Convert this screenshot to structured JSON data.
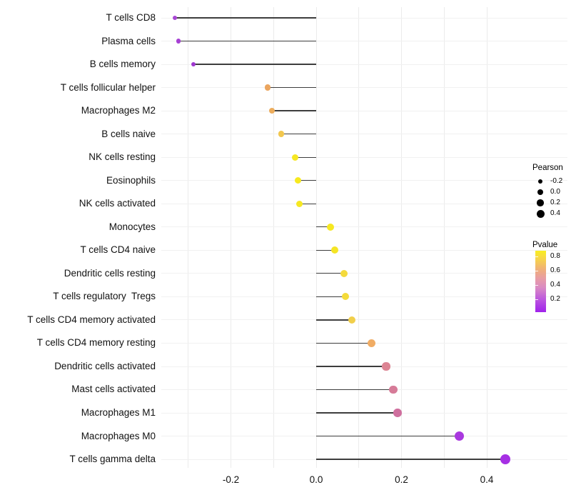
{
  "chart_data": {
    "type": "lollipop",
    "title": "",
    "xlabel": "",
    "ylabel": "",
    "xlim": [
      -0.365,
      0.475
    ],
    "x_ticks": [
      -0.2,
      0.0,
      0.2,
      0.4
    ],
    "x_tick_labels": [
      "-0.2",
      "0.0",
      "0.2",
      "0.4"
    ],
    "grid_minor_ticks": [
      -0.3,
      -0.1,
      0.1,
      0.3
    ],
    "grid": "vertical lines every 0.1, faint horizontal line per category",
    "categories": [
      "T cells CD8",
      "Plasma cells",
      "B cells memory",
      "T cells follicular helper",
      "Macrophages M2",
      "B cells naive",
      "NK cells resting",
      "Eosinophils",
      "NK cells activated",
      "Monocytes",
      "T cells CD4 naive",
      "Dendritic cells resting",
      "T cells regulatory  Tregs",
      "T cells CD4 memory activated",
      "T cells CD4 memory resting",
      "Dendritic cells activated",
      "Mast cells activated",
      "Macrophages M1",
      "Macrophages M0",
      "T cells gamma delta"
    ],
    "points": [
      {
        "label": "T cells CD8",
        "pearson": -0.331,
        "pvalue_approx": 0.18,
        "color": "#A846D4"
      },
      {
        "label": "Plasma cells",
        "pearson": -0.323,
        "pvalue_approx": 0.17,
        "color": "#A63FD3"
      },
      {
        "label": "B cells memory",
        "pearson": -0.288,
        "pvalue_approx": 0.15,
        "color": "#9E37CF"
      },
      {
        "label": "T cells follicular helper",
        "pearson": -0.114,
        "pvalue_approx": 0.55,
        "color": "#EBA55F"
      },
      {
        "label": "Macrophages M2",
        "pearson": -0.104,
        "pvalue_approx": 0.57,
        "color": "#ECAC5C"
      },
      {
        "label": "B cells naive",
        "pearson": -0.082,
        "pvalue_approx": 0.66,
        "color": "#F2C74E"
      },
      {
        "label": "NK cells resting",
        "pearson": -0.05,
        "pvalue_approx": 0.84,
        "color": "#F6E722"
      },
      {
        "label": "Eosinophils",
        "pearson": -0.042,
        "pvalue_approx": 0.86,
        "color": "#F7E91F"
      },
      {
        "label": "NK cells activated",
        "pearson": -0.04,
        "pvalue_approx": 0.85,
        "color": "#F6E822"
      },
      {
        "label": "Monocytes",
        "pearson": 0.033,
        "pvalue_approx": 0.85,
        "color": "#F6E821"
      },
      {
        "label": "T cells CD4 naive",
        "pearson": 0.044,
        "pvalue_approx": 0.83,
        "color": "#F5E525"
      },
      {
        "label": "Dendritic cells resting",
        "pearson": 0.065,
        "pvalue_approx": 0.76,
        "color": "#F4DA3C"
      },
      {
        "label": "T cells regulatory  Tregs",
        "pearson": 0.069,
        "pvalue_approx": 0.77,
        "color": "#F4DB3A"
      },
      {
        "label": "T cells CD4 memory activated",
        "pearson": 0.084,
        "pvalue_approx": 0.72,
        "color": "#F1CF4B"
      },
      {
        "label": "T cells CD4 memory resting",
        "pearson": 0.129,
        "pvalue_approx": 0.56,
        "color": "#F0AC64"
      },
      {
        "label": "Dendritic cells activated",
        "pearson": 0.164,
        "pvalue_approx": 0.45,
        "color": "#DC8493"
      },
      {
        "label": "Mast cells activated",
        "pearson": 0.181,
        "pvalue_approx": 0.42,
        "color": "#D67B98"
      },
      {
        "label": "Macrophages M1",
        "pearson": 0.191,
        "pvalue_approx": 0.38,
        "color": "#CF6F9E"
      },
      {
        "label": "Macrophages M0",
        "pearson": 0.335,
        "pvalue_approx": 0.05,
        "color": "#A938DF"
      },
      {
        "label": "T cells gamma delta",
        "pearson": 0.443,
        "pvalue_approx": 0.03,
        "color": "#A62FE4"
      }
    ]
  },
  "legend": {
    "pearson": {
      "title": "Pearson",
      "items": [
        {
          "label": "-0.2",
          "radius": 3.2
        },
        {
          "label": "0.0",
          "radius": 4.0
        },
        {
          "label": "0.2",
          "radius": 4.8
        },
        {
          "label": "0.4",
          "radius": 5.5
        }
      ],
      "dot_color": "#000000"
    },
    "pvalue": {
      "title": "Pvalue",
      "tick_labels": [
        "0.8",
        "0.6",
        "0.4",
        "0.2"
      ],
      "gradient_top_color": "#F9EE21",
      "gradient_mid_colors": [
        "#F0B078",
        "#E89DA4",
        "#DA8BC3"
      ],
      "gradient_bottom_color": "#A021EB",
      "value_range_shown": [
        0.015,
        0.885
      ]
    }
  },
  "colors": {
    "background": "#FFFFFF",
    "stem": "#3D3D3D",
    "grid_vertical": "#EBEBEB",
    "grid_horizontal": "#F1F1F1",
    "axis_text": "#111111"
  }
}
